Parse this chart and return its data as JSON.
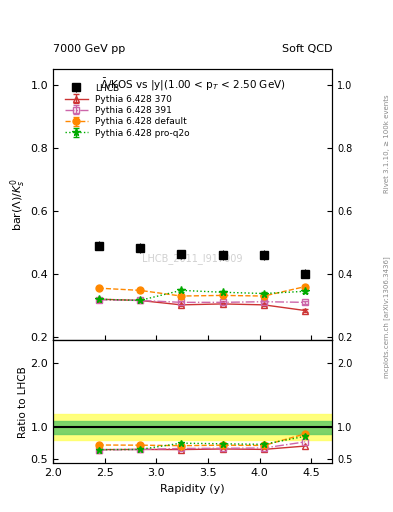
{
  "title_left": "7000 GeV pp",
  "title_right": "Soft QCD",
  "plot_title": "$\\bar{\\Lambda}$/KOS vs |y|(1.00 < p$_T$ < 2.50 GeV)",
  "ylabel_main": "bar($\\Lambda$)/$K_s^0$",
  "ylabel_ratio": "Ratio to LHCB",
  "xlabel": "Rapidity (y)",
  "watermark": "LHCB_2011_I917009",
  "right_label1": "Rivet 3.1.10, ≥ 100k events",
  "right_label2": "mcplots.cern.ch [arXiv:1306.3436]",
  "lhcb_x": [
    2.44,
    2.84,
    3.24,
    3.64,
    4.04,
    4.44
  ],
  "lhcb_y": [
    0.49,
    0.482,
    0.462,
    0.46,
    0.46,
    0.401
  ],
  "lhcb_yerr": [
    0.015,
    0.015,
    0.015,
    0.015,
    0.015,
    0.015
  ],
  "p370_x": [
    2.44,
    2.84,
    3.24,
    3.64,
    4.04,
    4.44
  ],
  "p370_y": [
    0.32,
    0.316,
    0.302,
    0.305,
    0.302,
    0.284
  ],
  "p370_yerr": [
    0.004,
    0.004,
    0.004,
    0.004,
    0.004,
    0.004
  ],
  "p391_x": [
    2.44,
    2.84,
    3.24,
    3.64,
    4.04,
    4.44
  ],
  "p391_y": [
    0.318,
    0.316,
    0.31,
    0.31,
    0.312,
    0.31
  ],
  "p391_yerr": [
    0.004,
    0.004,
    0.004,
    0.004,
    0.004,
    0.004
  ],
  "pdef_x": [
    2.44,
    2.84,
    3.24,
    3.64,
    4.04,
    4.44
  ],
  "pdef_y": [
    0.355,
    0.348,
    0.33,
    0.332,
    0.33,
    0.36
  ],
  "pdef_yerr": [
    0.004,
    0.004,
    0.004,
    0.004,
    0.004,
    0.004
  ],
  "pproq2o_x": [
    2.44,
    2.84,
    3.24,
    3.64,
    4.04,
    4.44
  ],
  "pproq2o_y": [
    0.32,
    0.316,
    0.348,
    0.342,
    0.338,
    0.345
  ],
  "pproq2o_yerr": [
    0.004,
    0.004,
    0.004,
    0.004,
    0.004,
    0.004
  ],
  "xlim": [
    2.0,
    4.7
  ],
  "ylim_main": [
    0.19,
    1.05
  ],
  "yticks_main": [
    0.2,
    0.4,
    0.6,
    0.8,
    1.0
  ],
  "ylim_ratio": [
    0.44,
    2.35
  ],
  "yticks_ratio": [
    0.5,
    1.0,
    2.0
  ],
  "color_370": "#cc3333",
  "color_391": "#cc66aa",
  "color_def": "#ff8800",
  "color_proq2o": "#00aa00",
  "band_green": "#66cc66",
  "band_yellow": "#ffff66",
  "band_green_range": [
    0.9,
    1.1
  ],
  "band_yellow_range": [
    0.8,
    1.2
  ]
}
